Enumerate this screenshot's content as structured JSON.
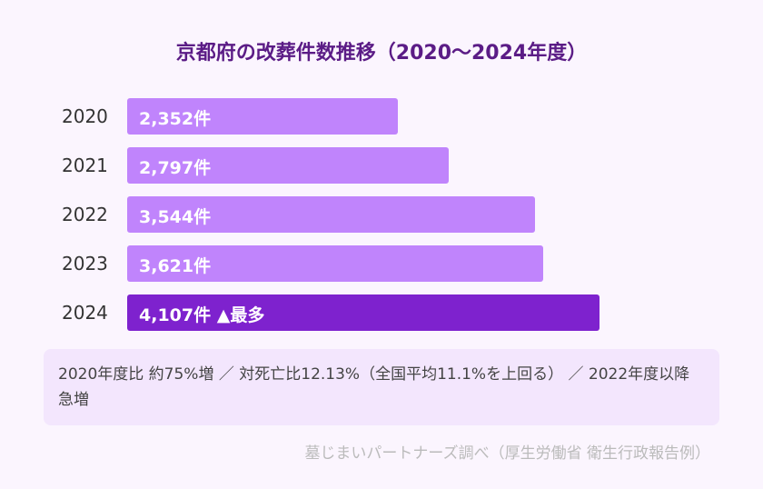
{
  "chart_data": {
    "type": "bar",
    "orientation": "horizontal",
    "title": "京都府の改葬件数推移（2020〜2024年度）",
    "categories": [
      "2020",
      "2021",
      "2022",
      "2023",
      "2024"
    ],
    "values": [
      2352,
      2797,
      3544,
      3621,
      4107
    ],
    "labels": [
      "2,352件",
      "2,797件",
      "3,544件",
      "3,621件",
      "4,107件 ▲最多"
    ],
    "highlight_index": 4,
    "colors": {
      "bar": "#c084fc",
      "highlight": "#7e22ce"
    }
  },
  "note": "2020年度比 約75%増 ／ 対死亡比12.13%（全国平均11.1%を上回る） ／ 2022年度以降急増",
  "source": "墓じまいパートナーズ調べ（厚生労働省 衛生行政報告例）"
}
